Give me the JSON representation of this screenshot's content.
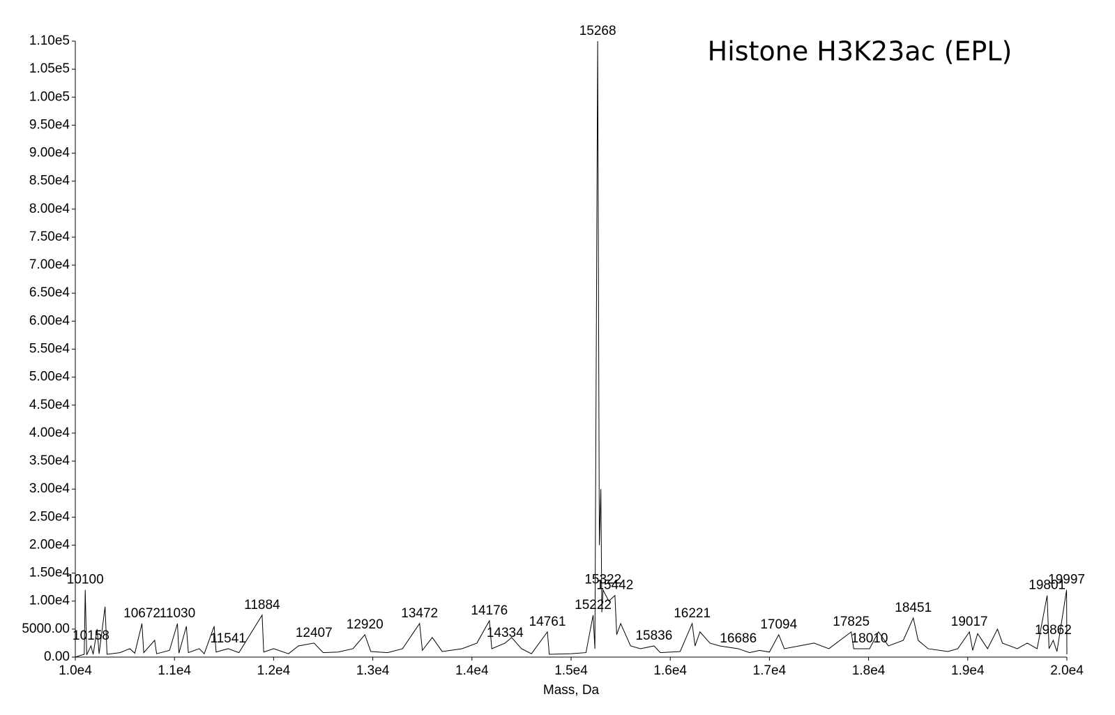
{
  "chart_data": {
    "type": "line",
    "title": "Histone H3K23ac (EPL)",
    "x_label": "Mass, Da",
    "x": [
      10000,
      10050,
      10090,
      10100,
      10115,
      10158,
      10180,
      10220,
      10240,
      10300,
      10320,
      10450,
      10550,
      10600,
      10672,
      10690,
      10800,
      10820,
      10950,
      11030,
      11045,
      11120,
      11140,
      11250,
      11300,
      11400,
      11420,
      11541,
      11650,
      11884,
      11900,
      12000,
      12150,
      12250,
      12407,
      12500,
      12650,
      12800,
      12920,
      12980,
      13150,
      13300,
      13472,
      13500,
      13600,
      13700,
      13900,
      14050,
      14176,
      14200,
      14334,
      14400,
      14500,
      14600,
      14761,
      14780,
      15000,
      15150,
      15222,
      15240,
      15268,
      15285,
      15300,
      15310,
      15322,
      15380,
      15442,
      15460,
      15500,
      15600,
      15700,
      15836,
      15900,
      16100,
      16221,
      16250,
      16300,
      16400,
      16500,
      16686,
      16800,
      16900,
      17000,
      17094,
      17150,
      17300,
      17450,
      17600,
      17825,
      17850,
      18010,
      18100,
      18200,
      18350,
      18451,
      18500,
      18600,
      18800,
      18900,
      19017,
      19050,
      19100,
      19200,
      19300,
      19350,
      19500,
      19600,
      19700,
      19801,
      19820,
      19862,
      19900,
      19997,
      20000
    ],
    "values": [
      0,
      300,
      500,
      12000,
      400,
      2000,
      500,
      5000,
      600,
      9000,
      500,
      800,
      1500,
      700,
      6000,
      800,
      3000,
      600,
      1200,
      6000,
      700,
      5500,
      800,
      1500,
      600,
      5500,
      900,
      1500,
      800,
      7500,
      900,
      1500,
      600,
      2000,
      2500,
      800,
      900,
      1500,
      4000,
      1000,
      800,
      1500,
      6000,
      1200,
      3500,
      1000,
      1500,
      2500,
      6500,
      1500,
      2500,
      3500,
      1500,
      600,
      4500,
      500,
      600,
      800,
      7500,
      1500,
      110000,
      20000,
      30000,
      8000,
      12000,
      10000,
      11000,
      4000,
      6000,
      2000,
      1500,
      2000,
      800,
      1000,
      6000,
      2000,
      4500,
      2500,
      2000,
      1500,
      800,
      1200,
      900,
      4000,
      1500,
      2000,
      2500,
      1500,
      4500,
      1500,
      1500,
      4500,
      2000,
      3000,
      7000,
      3000,
      1500,
      1000,
      1500,
      4500,
      1200,
      4200,
      1500,
      5000,
      2500,
      1500,
      2500,
      1500,
      11000,
      1500,
      3000,
      1000,
      12000,
      500
    ],
    "color": "#000000",
    "peak_labels": [
      10100,
      10158,
      10672,
      11030,
      11541,
      11884,
      12407,
      12920,
      13472,
      14176,
      14334,
      14761,
      15222,
      15268,
      15322,
      15442,
      15836,
      16221,
      16686,
      17094,
      17825,
      18010,
      18451,
      19017,
      19801,
      19862,
      19997
    ],
    "xlim": [
      10000,
      20000
    ],
    "xticks": [
      {
        "value": 10000,
        "label": "1.0e4"
      },
      {
        "value": 11000,
        "label": "1.1e4"
      },
      {
        "value": 12000,
        "label": "1.2e4"
      },
      {
        "value": 13000,
        "label": "1.3e4"
      },
      {
        "value": 14000,
        "label": "1.4e4"
      },
      {
        "value": 15000,
        "label": "1.5e4"
      },
      {
        "value": 16000,
        "label": "1.6e4"
      },
      {
        "value": 17000,
        "label": "1.7e4"
      },
      {
        "value": 18000,
        "label": "1.8e4"
      },
      {
        "value": 19000,
        "label": "1.9e4"
      },
      {
        "value": 20000,
        "label": "2.0e4"
      }
    ],
    "ylim": [
      0,
      110000
    ],
    "yticks": [
      {
        "value": 0,
        "label": "0.00"
      },
      {
        "value": 5000,
        "label": "5000.00"
      },
      {
        "value": 10000,
        "label": "1.00e4"
      },
      {
        "value": 15000,
        "label": "1.50e4"
      },
      {
        "value": 20000,
        "label": "2.00e4"
      },
      {
        "value": 25000,
        "label": "2.50e4"
      },
      {
        "value": 30000,
        "label": "3.00e4"
      },
      {
        "value": 35000,
        "label": "3.50e4"
      },
      {
        "value": 40000,
        "label": "4.00e4"
      },
      {
        "value": 45000,
        "label": "4.50e4"
      },
      {
        "value": 50000,
        "label": "5.00e4"
      },
      {
        "value": 55000,
        "label": "5.50e4"
      },
      {
        "value": 60000,
        "label": "6.00e4"
      },
      {
        "value": 65000,
        "label": "6.50e4"
      },
      {
        "value": 70000,
        "label": "7.00e4"
      },
      {
        "value": 75000,
        "label": "7.50e4"
      },
      {
        "value": 80000,
        "label": "8.00e4"
      },
      {
        "value": 85000,
        "label": "8.50e4"
      },
      {
        "value": 90000,
        "label": "9.00e4"
      },
      {
        "value": 95000,
        "label": "9.50e4"
      },
      {
        "value": 100000,
        "label": "1.00e5"
      },
      {
        "value": 105000,
        "label": "1.05e5"
      },
      {
        "value": 110000,
        "label": "1.10e5"
      }
    ],
    "grid": false
  }
}
